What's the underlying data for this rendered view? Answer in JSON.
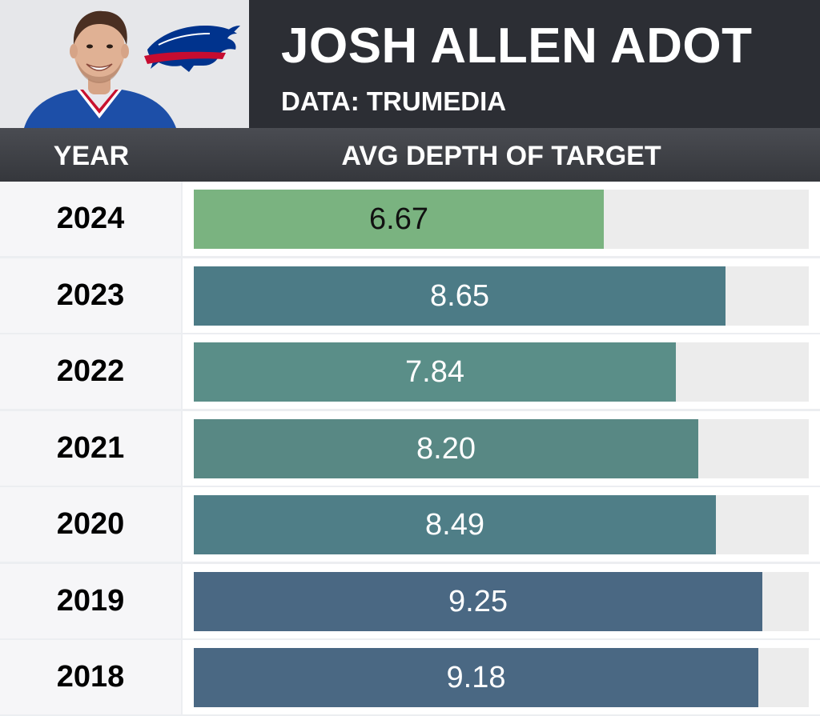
{
  "header": {
    "title": "JOSH ALLEN ADOT",
    "subtitle": "DATA: TRUMEDIA"
  },
  "columns": {
    "year": "YEAR",
    "metric": "AVG DEPTH OF TARGET"
  },
  "colors": {
    "header_bg": "#2c2e34",
    "bills_blue": "#00338D",
    "bills_red": "#C60C30"
  },
  "icons": {
    "logo": "buffalo-bills-logo",
    "photo": "player-headshot"
  },
  "chart_data": {
    "type": "bar",
    "orientation": "horizontal",
    "title": "JOSH ALLEN ADOT",
    "subtitle": "DATA: TRUMEDIA",
    "xlabel": "AVG DEPTH OF TARGET",
    "ylabel": "YEAR",
    "xlim": [
      0,
      10
    ],
    "categories": [
      "2024",
      "2023",
      "2022",
      "2021",
      "2020",
      "2019",
      "2018"
    ],
    "values": [
      6.67,
      8.65,
      7.84,
      8.2,
      8.49,
      9.25,
      9.18
    ],
    "labels": [
      "6.67",
      "8.65",
      "7.84",
      "8.20",
      "8.49",
      "9.25",
      "9.18"
    ],
    "bar_colors": [
      "#7ab380",
      "#4c7b86",
      "#5a8e88",
      "#588884",
      "#4f7e87",
      "#4a6883",
      "#4a6883"
    ],
    "label_colors": [
      "#111111",
      "#ffffff",
      "#ffffff",
      "#ffffff",
      "#ffffff",
      "#ffffff",
      "#ffffff"
    ],
    "grid": false,
    "legend": "none"
  }
}
